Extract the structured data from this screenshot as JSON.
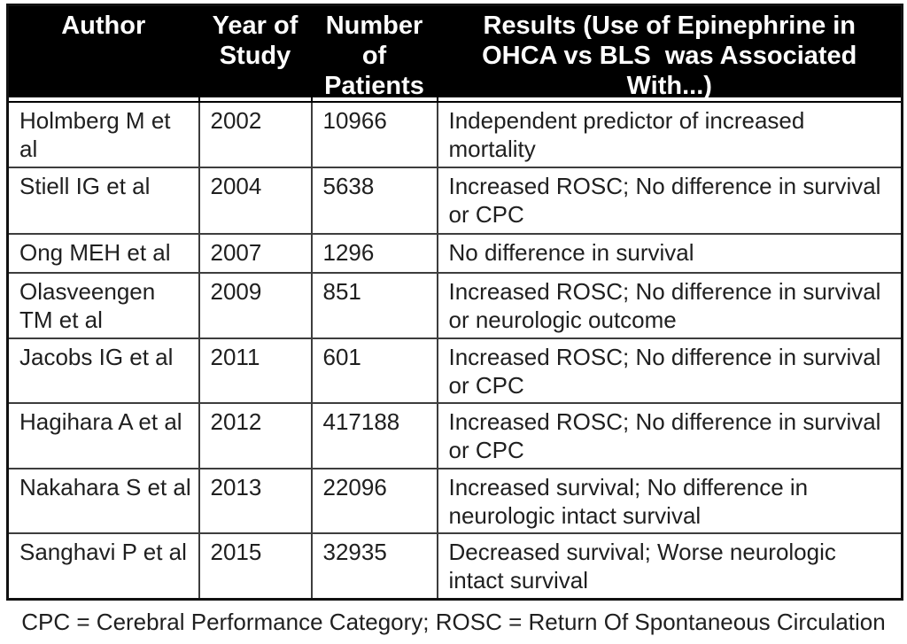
{
  "table": {
    "headers": [
      "Author",
      "Year of\nStudy",
      "Number\nof\nPatients",
      "Results (Use of Epinephrine in\nOHCA vs BLS  was Associated\nWith...)"
    ],
    "rows": [
      {
        "author": "Holmberg M et al",
        "year": "2002",
        "patients": "10966",
        "results": "Independent predictor of increased mortality"
      },
      {
        "author": "Stiell IG et al",
        "year": "2004",
        "patients": "5638",
        "results": "Increased ROSC; No difference in survival or CPC"
      },
      {
        "author": "Ong MEH et al",
        "year": "2007",
        "patients": "1296",
        "results": "No difference in survival"
      },
      {
        "author": "Olasveengen TM et al",
        "year": "2009",
        "patients": "851",
        "results": "Increased ROSC; No difference in survival or neurologic outcome"
      },
      {
        "author": "Jacobs IG et al",
        "year": "2011",
        "patients": "601",
        "results": "Increased ROSC; No difference in survival or CPC"
      },
      {
        "author": "Hagihara A et al",
        "year": "2012",
        "patients": "417188",
        "results": "Increased ROSC; No difference in survival or CPC"
      },
      {
        "author": "Nakahara S et al",
        "year": "2013",
        "patients": "22096",
        "results": "Increased survival; No difference in neurologic intact survival"
      },
      {
        "author": "Sanghavi P et al",
        "year": "2015",
        "patients": "32935",
        "results": "Decreased survival; Worse neurologic intact survival"
      }
    ]
  },
  "footnote": "CPC = Cerebral Performance Category; ROSC = Return Of Spontaneous Circulation",
  "colors": {
    "header_bg": "#000000",
    "header_text": "#ffffff",
    "body_text": "#1f1f1f",
    "inner_border": "#3d3d3d",
    "outer_border": "#111111",
    "page_bg": "#ffffff"
  }
}
